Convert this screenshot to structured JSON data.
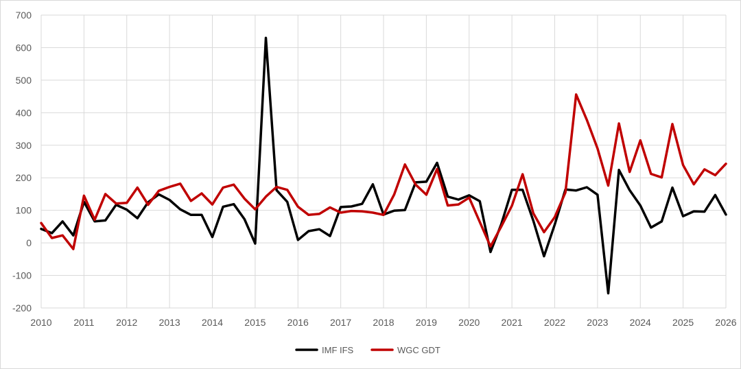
{
  "chart_data": {
    "type": "line",
    "title": "",
    "xlabel": "",
    "ylabel": "",
    "ylim": [
      -200,
      700
    ],
    "xlim": [
      2010,
      2026
    ],
    "yticks": [
      -200,
      -100,
      0,
      100,
      200,
      300,
      400,
      500,
      600,
      700
    ],
    "xticks": [
      2010,
      2011,
      2012,
      2013,
      2014,
      2015,
      2016,
      2017,
      2018,
      2019,
      2020,
      2021,
      2022,
      2023,
      2024,
      2025,
      2026
    ],
    "grid": true,
    "legend_position": "bottom",
    "series": [
      {
        "name": "IMF IFS",
        "color": "#000000",
        "points": [
          [
            2010.0,
            43
          ],
          [
            2010.25,
            30
          ],
          [
            2010.5,
            66
          ],
          [
            2010.75,
            23
          ],
          [
            2011.0,
            126
          ],
          [
            2011.25,
            66
          ],
          [
            2011.5,
            69
          ],
          [
            2011.75,
            117
          ],
          [
            2012.0,
            102
          ],
          [
            2012.25,
            76
          ],
          [
            2012.5,
            125
          ],
          [
            2012.75,
            149
          ],
          [
            2013.0,
            132
          ],
          [
            2013.25,
            103
          ],
          [
            2013.5,
            86
          ],
          [
            2013.75,
            86
          ],
          [
            2014.0,
            18
          ],
          [
            2014.25,
            111
          ],
          [
            2014.5,
            119
          ],
          [
            2014.75,
            73
          ],
          [
            2015.0,
            -2
          ],
          [
            2015.25,
            630
          ],
          [
            2015.5,
            162
          ],
          [
            2015.75,
            126
          ],
          [
            2016.0,
            9
          ],
          [
            2016.25,
            36
          ],
          [
            2016.5,
            42
          ],
          [
            2016.75,
            21
          ],
          [
            2017.0,
            110
          ],
          [
            2017.25,
            112
          ],
          [
            2017.5,
            120
          ],
          [
            2017.75,
            180
          ],
          [
            2018.0,
            87
          ],
          [
            2018.25,
            99
          ],
          [
            2018.5,
            101
          ],
          [
            2018.75,
            186
          ],
          [
            2019.0,
            188
          ],
          [
            2019.25,
            246
          ],
          [
            2019.5,
            142
          ],
          [
            2019.75,
            133
          ],
          [
            2020.0,
            146
          ],
          [
            2020.25,
            128
          ],
          [
            2020.5,
            -28
          ],
          [
            2020.75,
            57
          ],
          [
            2021.0,
            163
          ],
          [
            2021.25,
            163
          ],
          [
            2021.5,
            68
          ],
          [
            2021.75,
            -41
          ],
          [
            2022.0,
            56
          ],
          [
            2022.25,
            164
          ],
          [
            2022.5,
            161
          ],
          [
            2022.75,
            171
          ],
          [
            2023.0,
            148
          ],
          [
            2023.25,
            -155
          ],
          [
            2023.5,
            224
          ],
          [
            2023.75,
            162
          ],
          [
            2024.0,
            115
          ],
          [
            2024.25,
            47
          ],
          [
            2024.5,
            66
          ],
          [
            2024.75,
            170
          ],
          [
            2025.0,
            82
          ],
          [
            2025.25,
            97
          ],
          [
            2025.5,
            96
          ],
          [
            2025.75,
            147
          ],
          [
            2026.0,
            87
          ]
        ]
      },
      {
        "name": "WGC GDT",
        "color": "#c00000",
        "points": [
          [
            2010.0,
            61
          ],
          [
            2010.25,
            15
          ],
          [
            2010.5,
            23
          ],
          [
            2010.75,
            -19
          ],
          [
            2011.0,
            145
          ],
          [
            2011.25,
            71
          ],
          [
            2011.5,
            150
          ],
          [
            2011.75,
            121
          ],
          [
            2012.0,
            123
          ],
          [
            2012.25,
            170
          ],
          [
            2012.5,
            117
          ],
          [
            2012.75,
            160
          ],
          [
            2013.0,
            172
          ],
          [
            2013.25,
            182
          ],
          [
            2013.5,
            129
          ],
          [
            2013.75,
            152
          ],
          [
            2014.0,
            118
          ],
          [
            2014.25,
            170
          ],
          [
            2014.5,
            179
          ],
          [
            2014.75,
            136
          ],
          [
            2015.0,
            103
          ],
          [
            2015.25,
            142
          ],
          [
            2015.5,
            172
          ],
          [
            2015.75,
            163
          ],
          [
            2016.0,
            111
          ],
          [
            2016.25,
            86
          ],
          [
            2016.5,
            89
          ],
          [
            2016.75,
            109
          ],
          [
            2017.0,
            93
          ],
          [
            2017.25,
            98
          ],
          [
            2017.5,
            97
          ],
          [
            2017.75,
            93
          ],
          [
            2018.0,
            86
          ],
          [
            2018.25,
            149
          ],
          [
            2018.5,
            241
          ],
          [
            2018.75,
            179
          ],
          [
            2019.0,
            148
          ],
          [
            2019.25,
            227
          ],
          [
            2019.5,
            115
          ],
          [
            2019.75,
            118
          ],
          [
            2020.0,
            139
          ],
          [
            2020.25,
            64
          ],
          [
            2020.5,
            -11
          ],
          [
            2020.75,
            50
          ],
          [
            2021.0,
            114
          ],
          [
            2021.25,
            211
          ],
          [
            2021.5,
            91
          ],
          [
            2021.75,
            33
          ],
          [
            2022.0,
            79
          ],
          [
            2022.25,
            155
          ],
          [
            2022.5,
            456
          ],
          [
            2022.75,
            378
          ],
          [
            2023.0,
            290
          ],
          [
            2023.25,
            176
          ],
          [
            2023.5,
            367
          ],
          [
            2023.75,
            218
          ],
          [
            2024.0,
            315
          ],
          [
            2024.25,
            212
          ],
          [
            2024.5,
            201
          ],
          [
            2024.75,
            365
          ],
          [
            2025.0,
            239
          ],
          [
            2025.25,
            180
          ],
          [
            2025.5,
            226
          ],
          [
            2025.75,
            208
          ],
          [
            2026.0,
            243
          ]
        ]
      }
    ]
  }
}
